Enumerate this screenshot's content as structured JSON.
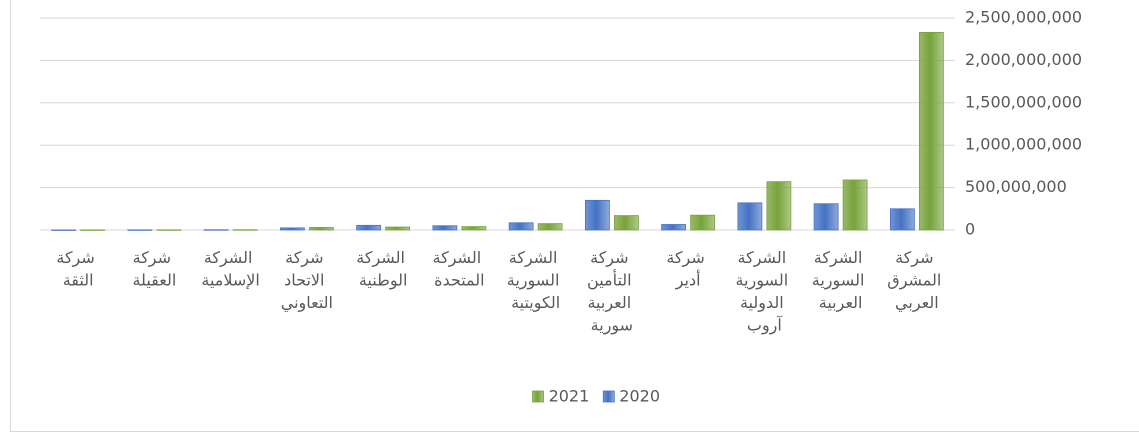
{
  "chart_data": {
    "type": "bar",
    "categories": [
      "شركة المشرق العربي",
      "الشركة السورية العربية",
      "الشركة السورية الدولية آروب",
      "شركة أدير",
      "شركة التأمين العربية سورية",
      "الشركة السورية الكويتية",
      "الشركة المتحدة",
      "الشركة الوطنية",
      "شركة الاتحاد التعاوني",
      "الشركة الإسلامية",
      "شركة العقيلة",
      "شركة الثقة"
    ],
    "series": [
      {
        "name": "2020",
        "color": "#4472c4",
        "values": [
          250000000,
          310000000,
          320000000,
          65000000,
          350000000,
          85000000,
          50000000,
          55000000,
          25000000,
          3000000,
          2000000,
          1000000
        ]
      },
      {
        "name": "2021",
        "color": "#77a33a",
        "values": [
          2330000000,
          590000000,
          570000000,
          175000000,
          170000000,
          75000000,
          40000000,
          35000000,
          30000000,
          3000000,
          2000000,
          1000000
        ]
      }
    ],
    "ylim": [
      0,
      2500000000
    ],
    "yticks": [
      0,
      {
        "value": 500000000,
        "label": "500,000,000"
      },
      {
        "value": 1000000000,
        "label": "1,000,000,000"
      },
      {
        "value": 1500000000,
        "label": "1,500,000,000"
      },
      {
        "value": 2000000000,
        "label": "2,000,000,000"
      },
      {
        "value": 2500000000,
        "label": "2,500,000,000"
      }
    ],
    "grid": true,
    "legend": "bottom",
    "direction": "rtl"
  }
}
